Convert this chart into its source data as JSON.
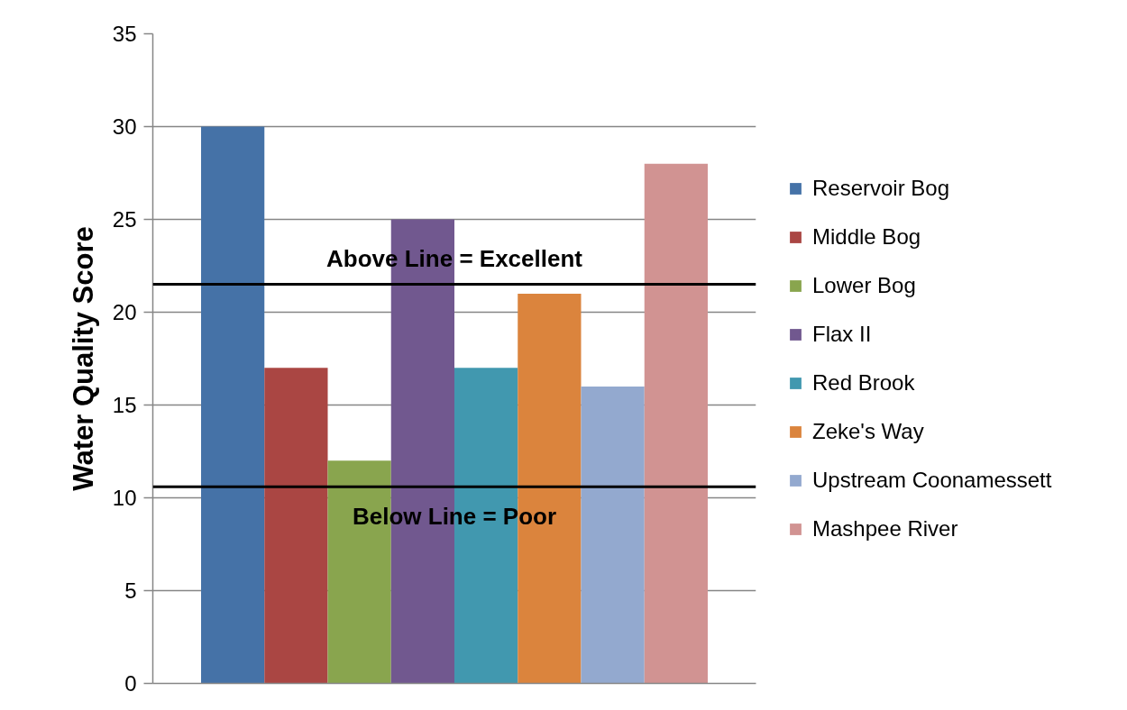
{
  "chart_data": {
    "type": "bar",
    "ylabel": "Water Quality Score",
    "categories": [
      null
    ],
    "series": [
      {
        "name": "Reservoir Bog",
        "color": "#4572a7",
        "values": [
          30
        ]
      },
      {
        "name": "Middle Bog",
        "color": "#aa4643",
        "values": [
          17
        ]
      },
      {
        "name": "Lower Bog",
        "color": "#89a54e",
        "values": [
          12
        ]
      },
      {
        "name": "Flax II",
        "color": "#71588f",
        "values": [
          25
        ]
      },
      {
        "name": "Red Brook",
        "color": "#4198af",
        "values": [
          17
        ]
      },
      {
        "name": "Zeke's Way",
        "color": "#db843d",
        "values": [
          21
        ]
      },
      {
        "name": "Upstream Coonamessett",
        "color": "#93a9cf",
        "values": [
          16
        ]
      },
      {
        "name": "Mashpee River",
        "color": "#d19392",
        "values": [
          28
        ]
      }
    ],
    "ylim": [
      0,
      35
    ],
    "yticks": [
      0,
      5,
      10,
      15,
      20,
      25,
      30,
      35
    ],
    "grid": "y",
    "legend": "right",
    "ref_lines": [
      {
        "axis": "y",
        "value": 21.5,
        "label": "Above Line = Excellent",
        "color": "#000000"
      },
      {
        "axis": "y",
        "value": 10.6,
        "label": "Below Line = Poor",
        "color": "#000000"
      }
    ]
  }
}
